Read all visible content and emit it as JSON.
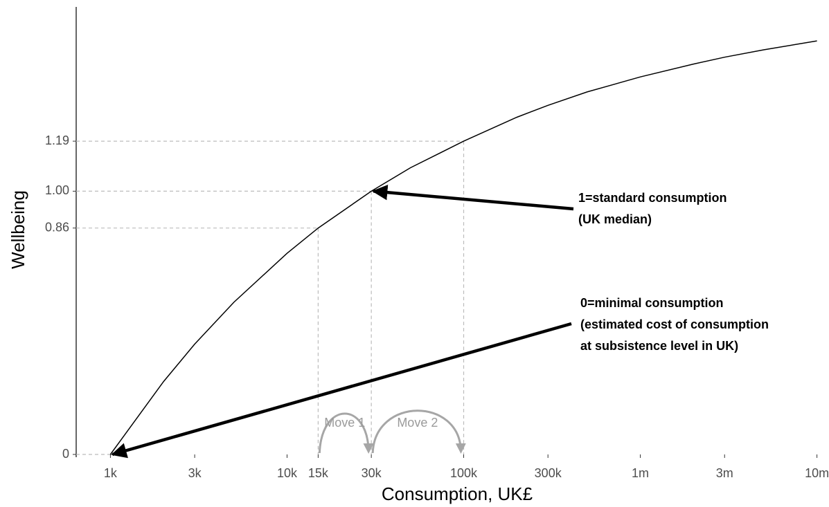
{
  "chart_data": {
    "type": "line",
    "x_label": "Consumption, UK£",
    "y_label": "Wellbeing",
    "x": [
      1000,
      2000,
      3000,
      5000,
      10000,
      15000,
      30000,
      50000,
      100000,
      200000,
      300000,
      500000,
      1000000,
      2000000,
      3000000,
      5000000,
      10000000
    ],
    "values": [
      0,
      0.277,
      0.419,
      0.578,
      0.764,
      0.86,
      1,
      1.089,
      1.19,
      1.281,
      1.326,
      1.377,
      1.434,
      1.483,
      1.509,
      1.537,
      1.571
    ],
    "color": "#000000",
    "x_log_scale": true,
    "xlim": [
      640,
      10500000
    ],
    "ylim": [
      0,
      1.7
    ],
    "xticks": [
      {
        "value": 1000,
        "label": "1k"
      },
      {
        "value": 3000,
        "label": "3k"
      },
      {
        "value": 10000,
        "label": "10k"
      },
      {
        "value": 15000,
        "label": "15k"
      },
      {
        "value": 30000,
        "label": "30k"
      },
      {
        "value": 100000,
        "label": "100k"
      },
      {
        "value": 300000,
        "label": "300k"
      },
      {
        "value": 1000000,
        "label": "1m"
      },
      {
        "value": 3000000,
        "label": "3m"
      },
      {
        "value": 10000000,
        "label": "10m"
      }
    ],
    "yticks": [
      0,
      0.86,
      {
        "value": 1,
        "label": "1.00"
      },
      1.19
    ],
    "reference_points": {
      "x": [
        1000,
        15000,
        30000,
        100000
      ],
      "y": [
        0,
        0.86,
        1,
        1.19
      ]
    },
    "annotations": [
      {
        "lines": [
          "1=standard consumption",
          "(UK median)"
        ],
        "x": 30000,
        "y": 1
      },
      {
        "lines": [
          "0=minimal consumption",
          "(estimated cost of consumption",
          "at subsistence level in UK)"
        ],
        "x": 1000,
        "y": 0
      }
    ],
    "moves": [
      {
        "label": "Move 1",
        "from": 15000,
        "to": 30000
      },
      {
        "label": "Move 2",
        "from": 30000,
        "to": 100000
      }
    ]
  }
}
